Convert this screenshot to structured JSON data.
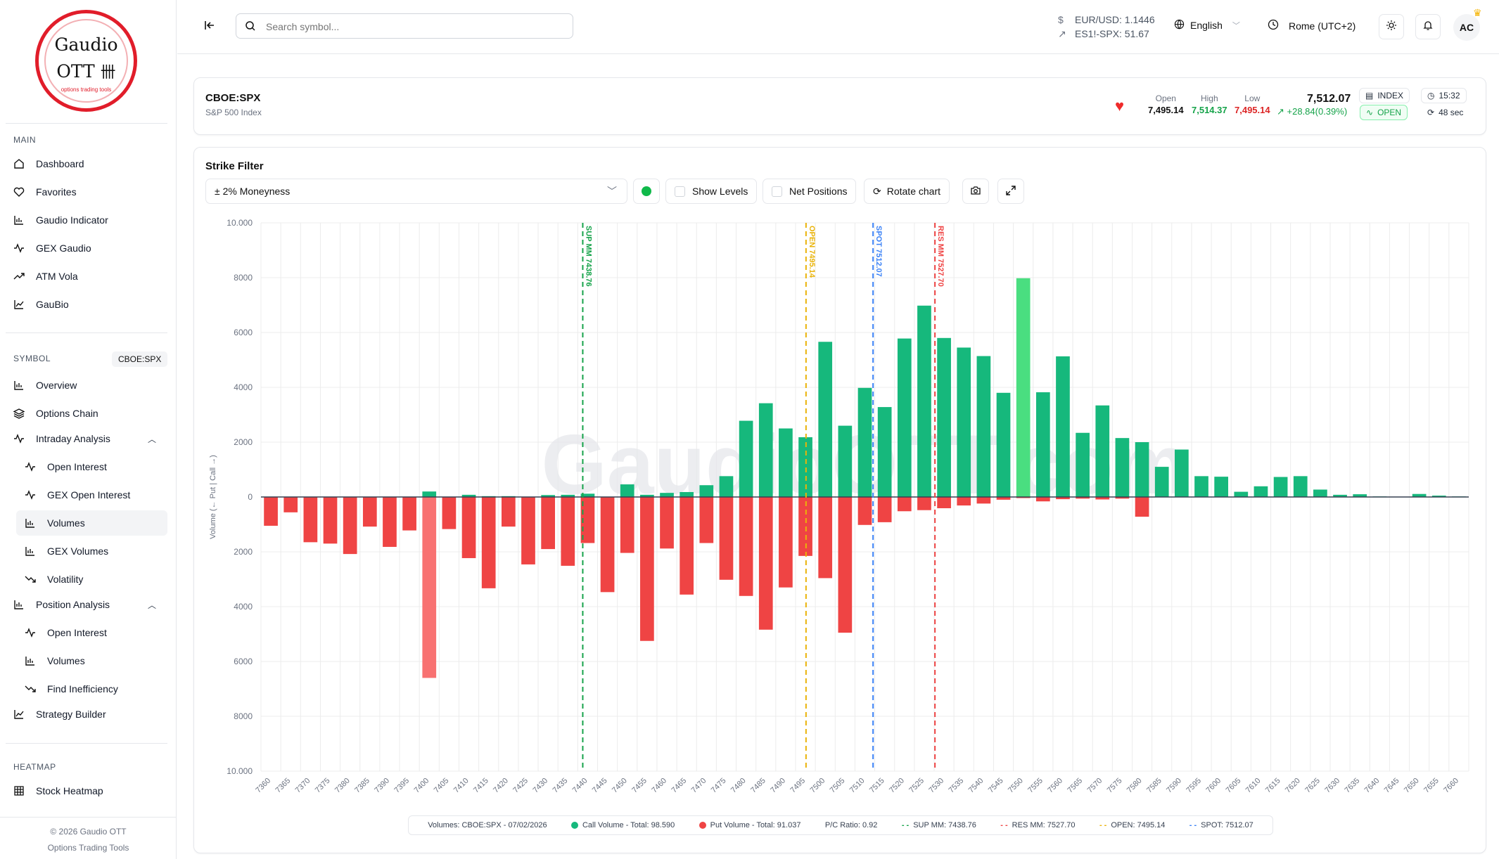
{
  "sidebar": {
    "logo": {
      "line1": "Gaudio",
      "line2": "OTT",
      "tagline": "options trading tools"
    },
    "main_title": "MAIN",
    "main_items": [
      {
        "label": "Dashboard",
        "icon": "home-icon"
      },
      {
        "label": "Favorites",
        "icon": "heart-icon"
      },
      {
        "label": "Gaudio Indicator",
        "icon": "bar-chart-icon"
      },
      {
        "label": "GEX Gaudio",
        "icon": "activity-icon"
      },
      {
        "label": "ATM Vola",
        "icon": "trend-icon"
      },
      {
        "label": "GauBio",
        "icon": "chart-icon"
      }
    ],
    "symbol_title": "SYMBOL",
    "symbol_badge": "CBOE:SPX",
    "symbol_items": [
      {
        "label": "Overview"
      },
      {
        "label": "Options Chain"
      },
      {
        "label": "Intraday Analysis"
      },
      {
        "label": "Open Interest"
      },
      {
        "label": "GEX Open Interest"
      },
      {
        "label": "Volumes"
      },
      {
        "label": "GEX Volumes"
      },
      {
        "label": "Volatility"
      },
      {
        "label": "Position Analysis"
      },
      {
        "label": "Open Interest"
      },
      {
        "label": "Volumes"
      },
      {
        "label": "Find Inefficiency"
      },
      {
        "label": "Strategy Builder"
      }
    ],
    "heatmap_title": "HEATMAP",
    "heatmap_items": [
      {
        "label": "Stock Heatmap"
      }
    ],
    "footer_1": "© 2026 Gaudio OTT",
    "footer_2": "Options Trading Tools"
  },
  "topbar": {
    "search_placeholder": "Search symbol...",
    "fx_1": "EUR/USD: 1.1446",
    "fx_2": "ES1!-SPX: 51.67",
    "language": "English",
    "timezone": "Rome (UTC+2)",
    "avatar": "AC"
  },
  "symbol": {
    "code": "CBOE:SPX",
    "name": "S&P 500 Index",
    "open_label": "Open",
    "open": "7,495.14",
    "high_label": "High",
    "high": "7,514.37",
    "low_label": "Low",
    "low": "7,495.14",
    "price": "7,512.07",
    "change": "+28.84(0.39%)",
    "type": "INDEX",
    "status": "OPEN",
    "time": "15:32",
    "refresh": "48 sec"
  },
  "controls": {
    "strike_filter_label": "Strike Filter",
    "strike_filter_value": "± 2% Moneyness",
    "show_levels": "Show Levels",
    "net_positions": "Net Positions",
    "rotate_chart": "Rotate chart"
  },
  "colors": {
    "call": "#16b87c",
    "call_highlight": "#4ade80",
    "put": "#ef4444",
    "put_highlight": "#f87171",
    "sup": "#16a34a",
    "res": "#ef4444",
    "open": "#eab308",
    "spot": "#3b82f6"
  },
  "legend": {
    "title": "Volumes: CBOE:SPX - 07/02/2026",
    "call": "Call Volume - Total: 98.590",
    "put": "Put Volume - Total: 91.037",
    "pc": "P/C Ratio: 0.92",
    "sup": "SUP MM: 7438.76",
    "res": "RES MM: 7527.70",
    "open": "OPEN: 7495.14",
    "spot": "SPOT: 7512.07"
  },
  "chart_data": {
    "type": "bar",
    "ylabel": "Volume (← Put | Call →)",
    "ylim": [
      -10000,
      10000
    ],
    "yticks": [
      10000,
      8000,
      6000,
      4000,
      2000,
      0,
      2000,
      4000,
      6000,
      8000,
      10000
    ],
    "ytick_labels": [
      "10.000",
      "8000",
      "6000",
      "4000",
      "2000",
      "0",
      "2000",
      "4000",
      "6000",
      "8000",
      "10.000"
    ],
    "categories": [
      "7360",
      "7365",
      "7370",
      "7375",
      "7380",
      "7385",
      "7390",
      "7395",
      "7400",
      "7405",
      "7410",
      "7415",
      "7420",
      "7425",
      "7430",
      "7435",
      "7440",
      "7445",
      "7450",
      "7455",
      "7460",
      "7465",
      "7470",
      "7475",
      "7480",
      "7485",
      "7490",
      "7495",
      "7500",
      "7505",
      "7510",
      "7515",
      "7520",
      "7525",
      "7530",
      "7535",
      "7540",
      "7545",
      "7550",
      "7555",
      "7560",
      "7565",
      "7570",
      "7575",
      "7580",
      "7585",
      "7590",
      "7595",
      "7600",
      "7605",
      "7610",
      "7615",
      "7620",
      "7625",
      "7630",
      "7635",
      "7640",
      "7645",
      "7650",
      "7655",
      "7660"
    ],
    "series": [
      {
        "name": "Call Volume",
        "values": [
          0,
          0,
          0,
          0,
          0,
          0,
          0,
          0,
          200,
          0,
          80,
          30,
          30,
          0,
          70,
          80,
          120,
          0,
          460,
          80,
          150,
          180,
          430,
          760,
          2780,
          3420,
          2500,
          2180,
          5660,
          2600,
          3980,
          3280,
          5780,
          6980,
          5800,
          5450,
          5140,
          3800,
          7980,
          3820,
          5130,
          2340,
          3340,
          2150,
          2000,
          1100,
          1730,
          760,
          740,
          190,
          390,
          730,
          760,
          270,
          80,
          100,
          20,
          0,
          110,
          50,
          20
        ]
      },
      {
        "name": "Put Volume",
        "values": [
          1050,
          560,
          1650,
          1700,
          2080,
          1080,
          1820,
          1220,
          6600,
          1170,
          2230,
          3330,
          1080,
          2460,
          1900,
          2510,
          1680,
          3470,
          2040,
          5250,
          1880,
          3560,
          1680,
          3020,
          3610,
          4840,
          3300,
          2150,
          2960,
          4950,
          1020,
          920,
          520,
          480,
          410,
          310,
          240,
          100,
          40,
          160,
          80,
          60,
          90,
          60,
          720,
          0,
          0,
          0,
          0,
          0,
          0,
          0,
          0,
          0,
          0,
          0,
          0,
          0,
          0,
          0,
          0
        ]
      }
    ],
    "highlight": {
      "call": "7550",
      "put": "7400"
    },
    "levels": [
      {
        "label": "SUP MM 7438.76",
        "value": 7438.76,
        "color": "#16a34a"
      },
      {
        "label": "OPEN 7495.14",
        "value": 7495.14,
        "color": "#eab308"
      },
      {
        "label": "SPOT 7512.07",
        "value": 7512.07,
        "color": "#3b82f6"
      },
      {
        "label": "RES MM 7527.70",
        "value": 7527.7,
        "color": "#ef4444"
      }
    ],
    "watermark": "GaudioOTT.com"
  }
}
